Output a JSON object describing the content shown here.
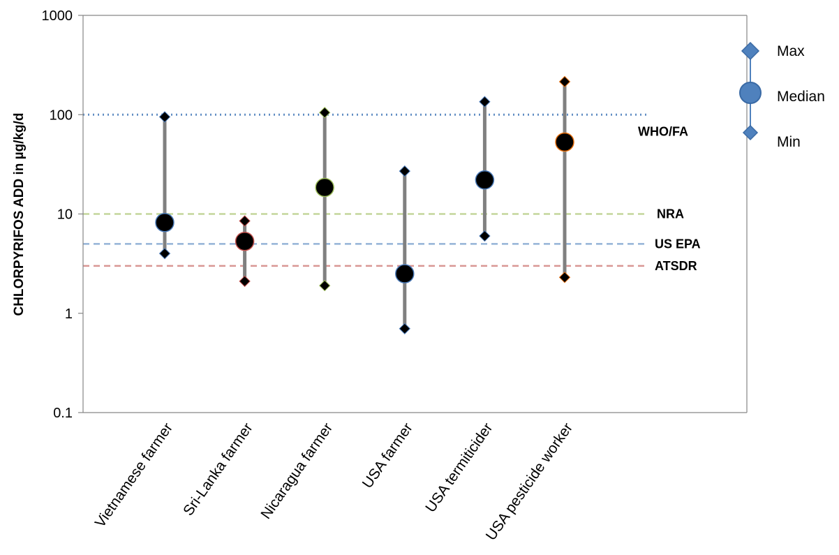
{
  "chart_data": {
    "type": "scatter",
    "subtype": "high-low-median",
    "title": "",
    "xlabel": "",
    "ylabel": "CHLORPYRIFOS ADD in µg/kg/d",
    "yscale": "log",
    "ylim": [
      0.1,
      1000
    ],
    "yticks": [
      {
        "value": 0.1,
        "label": "0.1"
      },
      {
        "value": 1,
        "label": "1"
      },
      {
        "value": 10,
        "label": "10"
      },
      {
        "value": 100,
        "label": "100"
      },
      {
        "value": 1000,
        "label": "1000"
      }
    ],
    "grid": false,
    "categories": [
      "Vietnamese farmer",
      "Sri-Lanka farmer",
      "Nicaragua  farmer",
      "USA  farmer",
      "USA termiticider",
      "USA pesticide worker"
    ],
    "series": [
      {
        "name": "Max",
        "values": [
          95,
          8.5,
          105,
          27,
          135,
          215
        ]
      },
      {
        "name": "Median",
        "values": [
          8.2,
          5.3,
          18.5,
          2.5,
          22,
          53
        ]
      },
      {
        "name": "Min",
        "values": [
          4,
          2.1,
          1.9,
          0.7,
          6,
          2.3
        ]
      }
    ],
    "marker_outlines": [
      "#4a7ab8",
      "#c0504d",
      "#9bbb59",
      "#4a7ab8",
      "#4a7ab8",
      "#e46c0a"
    ],
    "reference_lines": [
      {
        "label": "WHO/FA",
        "value": 100,
        "color": "#4f81bd",
        "style": "dotted"
      },
      {
        "label": "NRA",
        "value": 10,
        "color": "#9bbb59",
        "style": "dashed"
      },
      {
        "label": "US EPA",
        "value": 5,
        "color": "#4f81bd",
        "style": "dashed"
      },
      {
        "label": "ATSDR",
        "value": 3,
        "color": "#c0504d",
        "style": "dashed"
      }
    ],
    "legend": {
      "position": "right",
      "items": [
        {
          "label": "Max",
          "marker": "diamond"
        },
        {
          "label": "Median",
          "marker": "circle"
        },
        {
          "label": "Min",
          "marker": "diamond"
        }
      ],
      "color": "#4f81bd"
    }
  }
}
